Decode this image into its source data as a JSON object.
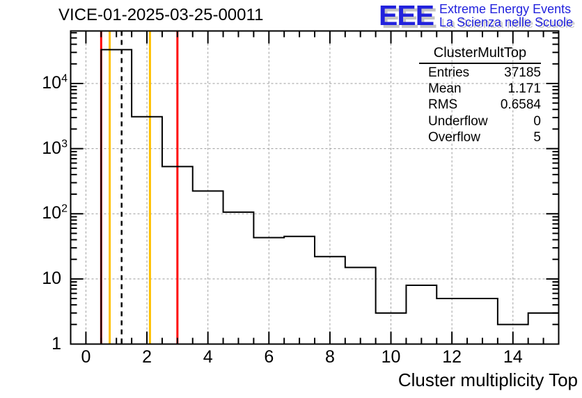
{
  "chart_data": {
    "type": "bar",
    "title": "VICE-01-2025-03-25-00011",
    "xlabel": "Cluster multiplicity Top",
    "ylabel": "",
    "x_range": [
      -0.5,
      15.5
    ],
    "y_range": [
      1,
      64000
    ],
    "y_scale": "log",
    "grid": "dashed",
    "grid_color": "#9b9b9b",
    "bin_width": 1,
    "categories": [
      0,
      1,
      2,
      3,
      4,
      5,
      6,
      7,
      8,
      9,
      10,
      11,
      12,
      13,
      14,
      15
    ],
    "values": [
      0,
      33079,
      3090,
      530,
      224,
      106,
      43,
      45,
      22,
      15,
      3,
      8,
      5,
      5,
      2,
      3
    ],
    "x_major_ticks": [
      0,
      2,
      4,
      6,
      8,
      10,
      12,
      14
    ],
    "x_minor_step": 0.5,
    "y_decades": [
      1,
      10,
      100,
      1000,
      10000
    ],
    "line_color": "#000000",
    "marker_lines": [
      {
        "x": 0.5,
        "color": "#ff0000",
        "style": "solid"
      },
      {
        "x": 0.78,
        "color": "#ffc000",
        "style": "solid"
      },
      {
        "x": 1.171,
        "color": "#000000",
        "style": "dashed"
      },
      {
        "x": 2.1,
        "color": "#ffc000",
        "style": "solid"
      },
      {
        "x": 3.0,
        "color": "#ff0000",
        "style": "solid"
      }
    ]
  },
  "stats": {
    "header": "ClusterMultTop",
    "rows": [
      {
        "label": "Entries",
        "value": "37185"
      },
      {
        "label": "Mean",
        "value": "1.171"
      },
      {
        "label": "RMS",
        "value": "0.6584"
      },
      {
        "label": "Underflow",
        "value": "0"
      },
      {
        "label": "Overflow",
        "value": "5"
      }
    ]
  },
  "logo": {
    "acronym": "EEE",
    "line1": "Extreme Energy Events",
    "line2": "La Scienza nelle Scuole",
    "color": "#2222dd",
    "shadow_color": "#c4c4c4"
  }
}
